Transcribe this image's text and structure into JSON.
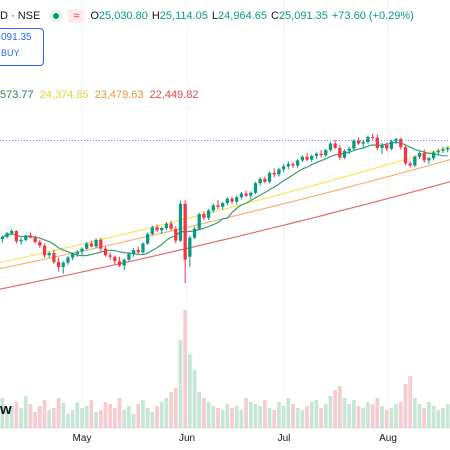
{
  "header": {
    "symbol": "D · NSE",
    "ohlc": [
      {
        "k": "O",
        "v": "25,030.80"
      },
      {
        "k": "H",
        "v": "25,114.05"
      },
      {
        "k": "L",
        "v": "24,964.65"
      },
      {
        "k": "C",
        "v": "25,091.35"
      }
    ],
    "change": "+73.60 (+0.29%)",
    "wave_icon": "≈"
  },
  "trade": {
    "price": "091.35",
    "label": "BUY"
  },
  "ma_values": {
    "ma1": "573.77",
    "ma2": "24,374.85",
    "ma3": "23,479.63",
    "ma4": "22,449.82"
  },
  "colors": {
    "up": "#089981",
    "down": "#f23645",
    "ma20": "#3b9c6e",
    "ma50": "#f5e55a",
    "ma100": "#f5b27a",
    "ma200": "#e36a6a",
    "vol_up": "#c8e6d8",
    "vol_down": "#f5cdd1"
  },
  "logo_fragment": "w",
  "chart_data": {
    "type": "candlestick",
    "x_labels": [
      "May",
      "Jun",
      "Jul",
      "Aug"
    ],
    "candles": [
      [
        21940,
        21990,
        21890,
        21970
      ],
      [
        21970,
        22040,
        21950,
        22020
      ],
      [
        22020,
        22080,
        21990,
        22050
      ],
      [
        22050,
        22060,
        21880,
        21910
      ],
      [
        21910,
        21960,
        21860,
        21930
      ],
      [
        21930,
        22000,
        21910,
        21990
      ],
      [
        21990,
        22030,
        21950,
        21960
      ],
      [
        21960,
        21990,
        21880,
        21900
      ],
      [
        21900,
        21930,
        21820,
        21850
      ],
      [
        21850,
        21880,
        21690,
        21720
      ],
      [
        21720,
        21770,
        21690,
        21750
      ],
      [
        21750,
        21800,
        21600,
        21630
      ],
      [
        21630,
        21690,
        21500,
        21560
      ],
      [
        21560,
        21640,
        21470,
        21620
      ],
      [
        21620,
        21710,
        21590,
        21690
      ],
      [
        21690,
        21760,
        21650,
        21740
      ],
      [
        21740,
        21790,
        21700,
        21770
      ],
      [
        21770,
        21830,
        21720,
        21810
      ],
      [
        21810,
        21900,
        21790,
        21880
      ],
      [
        21880,
        21920,
        21830,
        21840
      ],
      [
        21840,
        21950,
        21820,
        21930
      ],
      [
        21930,
        21960,
        21780,
        21810
      ],
      [
        21810,
        21840,
        21700,
        21720
      ],
      [
        21720,
        21760,
        21660,
        21700
      ],
      [
        21700,
        21720,
        21600,
        21640
      ],
      [
        21640,
        21700,
        21560,
        21580
      ],
      [
        21580,
        21680,
        21520,
        21660
      ],
      [
        21660,
        21760,
        21640,
        21740
      ],
      [
        21740,
        21820,
        21700,
        21790
      ],
      [
        21790,
        21840,
        21740,
        21760
      ],
      [
        21760,
        21900,
        21740,
        21880
      ],
      [
        21880,
        22030,
        21860,
        22010
      ],
      [
        22010,
        22120,
        21990,
        22100
      ],
      [
        22100,
        22140,
        22040,
        22060
      ],
      [
        22060,
        22110,
        22010,
        22090
      ],
      [
        22090,
        22170,
        22060,
        22150
      ],
      [
        22150,
        22190,
        22060,
        22080
      ],
      [
        22080,
        22120,
        21880,
        21920
      ],
      [
        21920,
        22460,
        21900,
        22420
      ],
      [
        22420,
        22470,
        21340,
        21660
      ],
      [
        21700,
        21990,
        21560,
        21960
      ],
      [
        21960,
        22110,
        21940,
        22080
      ],
      [
        22080,
        22300,
        22060,
        22280
      ],
      [
        22280,
        22320,
        22200,
        22230
      ],
      [
        22230,
        22350,
        22200,
        22330
      ],
      [
        22330,
        22420,
        22300,
        22400
      ],
      [
        22400,
        22470,
        22350,
        22380
      ],
      [
        22380,
        22450,
        22340,
        22430
      ],
      [
        22430,
        22510,
        22400,
        22490
      ],
      [
        22490,
        22520,
        22420,
        22450
      ],
      [
        22450,
        22530,
        22410,
        22510
      ],
      [
        22510,
        22580,
        22480,
        22560
      ],
      [
        22560,
        22600,
        22510,
        22530
      ],
      [
        22530,
        22590,
        22480,
        22570
      ],
      [
        22570,
        22720,
        22550,
        22700
      ],
      [
        22700,
        22780,
        22670,
        22760
      ],
      [
        22760,
        22790,
        22700,
        22720
      ],
      [
        22720,
        22860,
        22700,
        22840
      ],
      [
        22840,
        22900,
        22780,
        22820
      ],
      [
        22820,
        22910,
        22790,
        22890
      ],
      [
        22890,
        22960,
        22850,
        22930
      ],
      [
        22930,
        23000,
        22890,
        22960
      ],
      [
        22960,
        22990,
        22910,
        22940
      ],
      [
        22940,
        23030,
        22910,
        23010
      ],
      [
        23010,
        23080,
        22990,
        23060
      ],
      [
        23060,
        23110,
        23000,
        23020
      ],
      [
        23020,
        23090,
        22990,
        23070
      ],
      [
        23070,
        23120,
        23030,
        23100
      ],
      [
        23100,
        23150,
        23050,
        23080
      ],
      [
        23080,
        23170,
        23060,
        23150
      ],
      [
        23150,
        23260,
        23130,
        23240
      ],
      [
        23240,
        23290,
        23160,
        23180
      ],
      [
        23180,
        23220,
        23020,
        23050
      ],
      [
        23050,
        23160,
        23030,
        23140
      ],
      [
        23140,
        23200,
        23100,
        23170
      ],
      [
        23170,
        23300,
        23150,
        23280
      ],
      [
        23280,
        23320,
        23220,
        23240
      ],
      [
        23240,
        23290,
        23180,
        23260
      ],
      [
        23260,
        23350,
        23240,
        23330
      ],
      [
        23330,
        23370,
        23290,
        23320
      ],
      [
        23320,
        23360,
        23150,
        23180
      ],
      [
        23180,
        23250,
        23100,
        23220
      ],
      [
        23220,
        23250,
        23140,
        23170
      ],
      [
        23170,
        23290,
        23150,
        23270
      ],
      [
        23270,
        23320,
        23230,
        23300
      ],
      [
        23300,
        23320,
        23160,
        23190
      ],
      [
        23190,
        23220,
        22940,
        22970
      ],
      [
        22970,
        23000,
        22910,
        22940
      ],
      [
        22940,
        23080,
        22920,
        23060
      ],
      [
        23060,
        23130,
        23030,
        23110
      ],
      [
        23110,
        23160,
        22980,
        23010
      ],
      [
        23010,
        23060,
        22960,
        23040
      ],
      [
        23040,
        23140,
        23010,
        23120
      ],
      [
        23120,
        23170,
        23080,
        23140
      ],
      [
        23140,
        23190,
        23110,
        23160
      ],
      [
        23160,
        23200,
        23120,
        23180
      ]
    ],
    "volumes": [
      30,
      18,
      22,
      26,
      20,
      32,
      24,
      16,
      22,
      28,
      18,
      20,
      30,
      25,
      14,
      18,
      26,
      20,
      22,
      28,
      16,
      18,
      26,
      24,
      20,
      30,
      18,
      22,
      14,
      24,
      28,
      20,
      16,
      22,
      26,
      30,
      36,
      40,
      88,
      118,
      74,
      58,
      36,
      30,
      26,
      22,
      20,
      18,
      24,
      20,
      22,
      18,
      30,
      26,
      24,
      22,
      28,
      20,
      18,
      26,
      22,
      30,
      24,
      20,
      18,
      22,
      26,
      28,
      20,
      24,
      32,
      38,
      42,
      30,
      24,
      28,
      22,
      20,
      26,
      24,
      30,
      22,
      18,
      20,
      24,
      26,
      44,
      52,
      30,
      24,
      20,
      26,
      22,
      18,
      20,
      24
    ],
    "ma_series": [
      {
        "key": "ma200",
        "start": 21260,
        "end": 22720
      },
      {
        "key": "ma100",
        "start": 21540,
        "end": 23020
      },
      {
        "key": "ma50",
        "start": 21620,
        "end": 23200
      }
    ],
    "dotted_level": 23280
  }
}
